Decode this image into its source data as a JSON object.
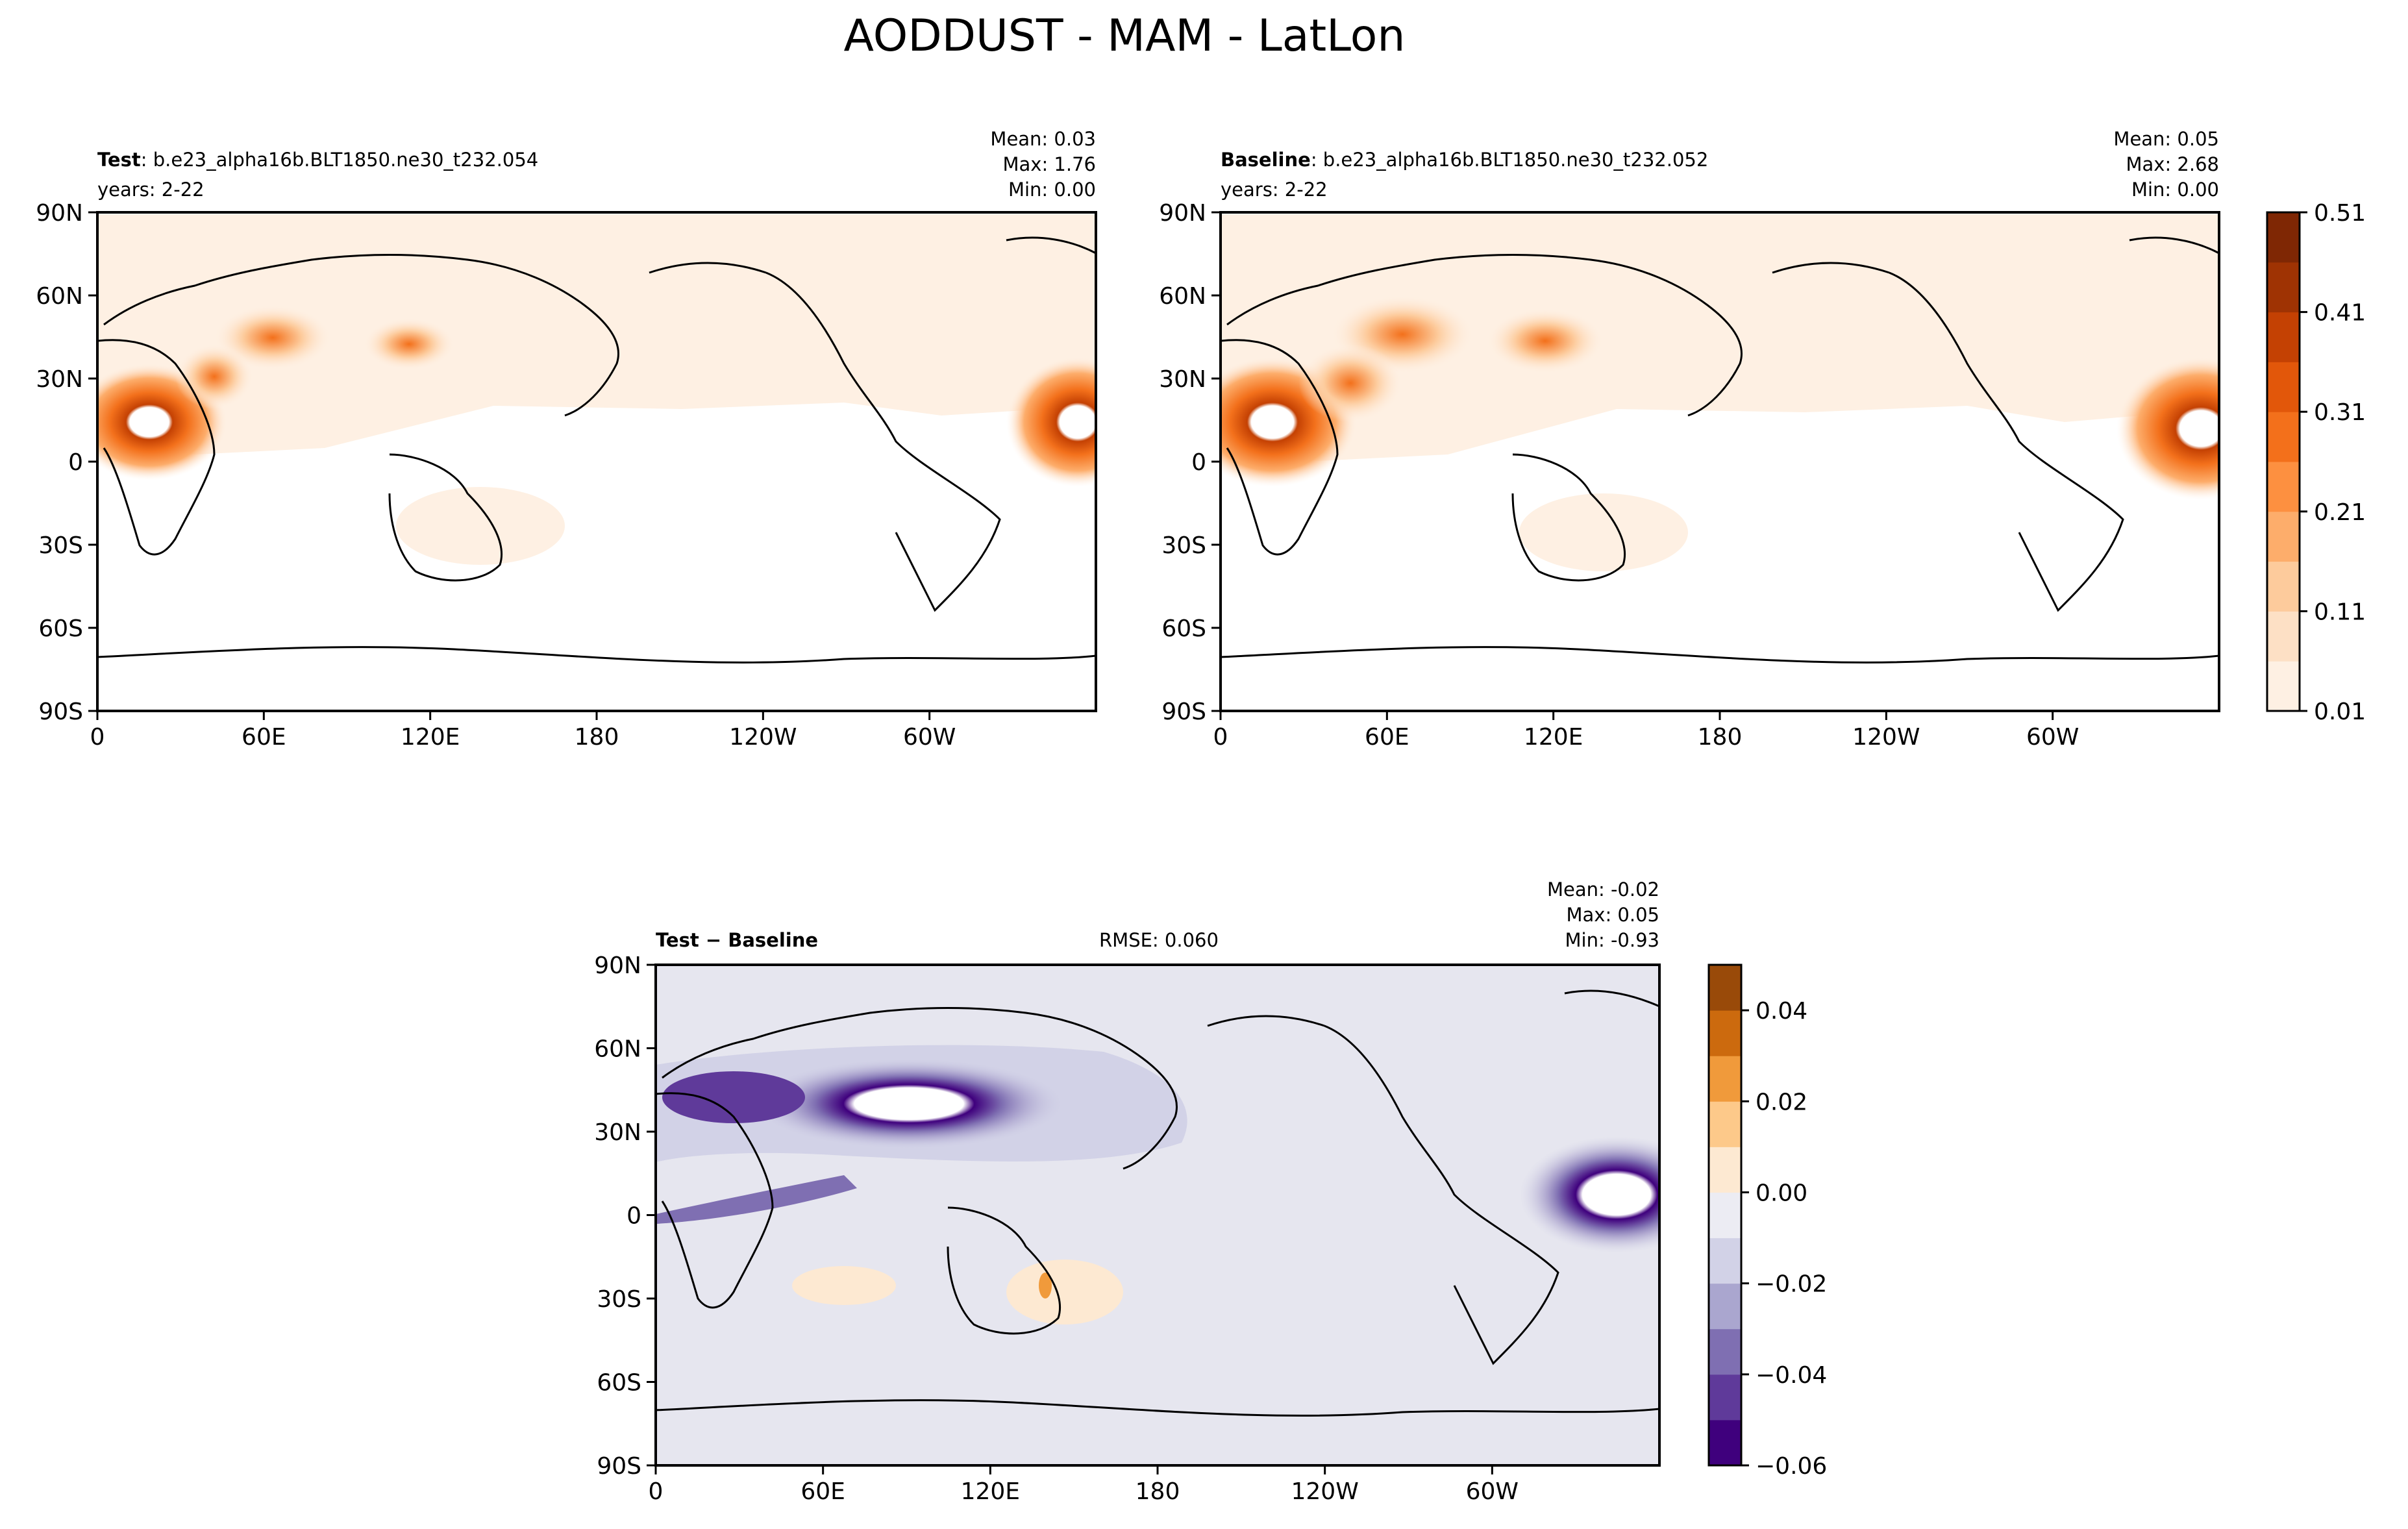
{
  "figure_title": "AODDUST - MAM - LatLon",
  "panels": [
    {
      "id": "test",
      "label_bold": "Test",
      "label_rest": ": b.e23_alpha16b.BLT1850.ne30_t232.054",
      "years": "years: 2-22",
      "stats": {
        "mean": "Mean:  0.03",
        "max": "Max:  1.76",
        "min": "Min:  0.00"
      }
    },
    {
      "id": "baseline",
      "label_bold": "Baseline",
      "label_rest": ": b.e23_alpha16b.BLT1850.ne30_t232.052",
      "years": "years: 2-22",
      "stats": {
        "mean": "Mean:  0.05",
        "max": "Max:  2.68",
        "min": "Min:  0.00"
      }
    },
    {
      "id": "diff",
      "label_bold": "Test − Baseline",
      "rmse": "RMSE: 0.060",
      "stats": {
        "mean": "Mean: -0.02",
        "max": "Max:  0.05",
        "min": "Min: -0.93"
      }
    }
  ],
  "chart_data": [
    {
      "type": "heatmap",
      "title": "Test",
      "x_ticks": [
        "0",
        "60E",
        "120E",
        "180",
        "120W",
        "60W"
      ],
      "y_ticks": [
        "90N",
        "60N",
        "30N",
        "0",
        "30S",
        "60S",
        "90S"
      ],
      "xlim": [
        0,
        360
      ],
      "ylim": [
        -90,
        90
      ]
    },
    {
      "type": "heatmap",
      "title": "Baseline",
      "x_ticks": [
        "0",
        "60E",
        "120E",
        "180",
        "120W",
        "60W"
      ],
      "y_ticks": [
        "90N",
        "60N",
        "30N",
        "0",
        "30S",
        "60S",
        "90S"
      ],
      "xlim": [
        0,
        360
      ],
      "ylim": [
        -90,
        90
      ],
      "colorbar": {
        "labels": [
          "0.51",
          "0.41",
          "0.31",
          "0.21",
          "0.11",
          "0.01"
        ],
        "colors": [
          "#fef0e3",
          "#fde0c5",
          "#fdcb9c",
          "#fdad6b",
          "#fd9040",
          "#f3701b",
          "#e2570a",
          "#c44103",
          "#9f3303",
          "#7f2704"
        ]
      }
    },
    {
      "type": "heatmap",
      "title": "Test − Baseline",
      "x_ticks": [
        "0",
        "60E",
        "120E",
        "180",
        "120W",
        "60W"
      ],
      "y_ticks": [
        "90N",
        "60N",
        "30N",
        "0",
        "30S",
        "60S",
        "90S"
      ],
      "xlim": [
        0,
        360
      ],
      "ylim": [
        -90,
        90
      ],
      "colorbar": {
        "labels": [
          "0.04",
          "0.02",
          "0.00",
          "−0.02",
          "−0.04",
          "−0.06"
        ],
        "colors": [
          "#3f007d",
          "#5f3a9a",
          "#7f6fb2",
          "#aaa6cf",
          "#d2d2e7",
          "#ececf3",
          "#fde9d2",
          "#fdc98a",
          "#f09a3b",
          "#cc6a0e",
          "#994a09"
        ]
      }
    }
  ]
}
